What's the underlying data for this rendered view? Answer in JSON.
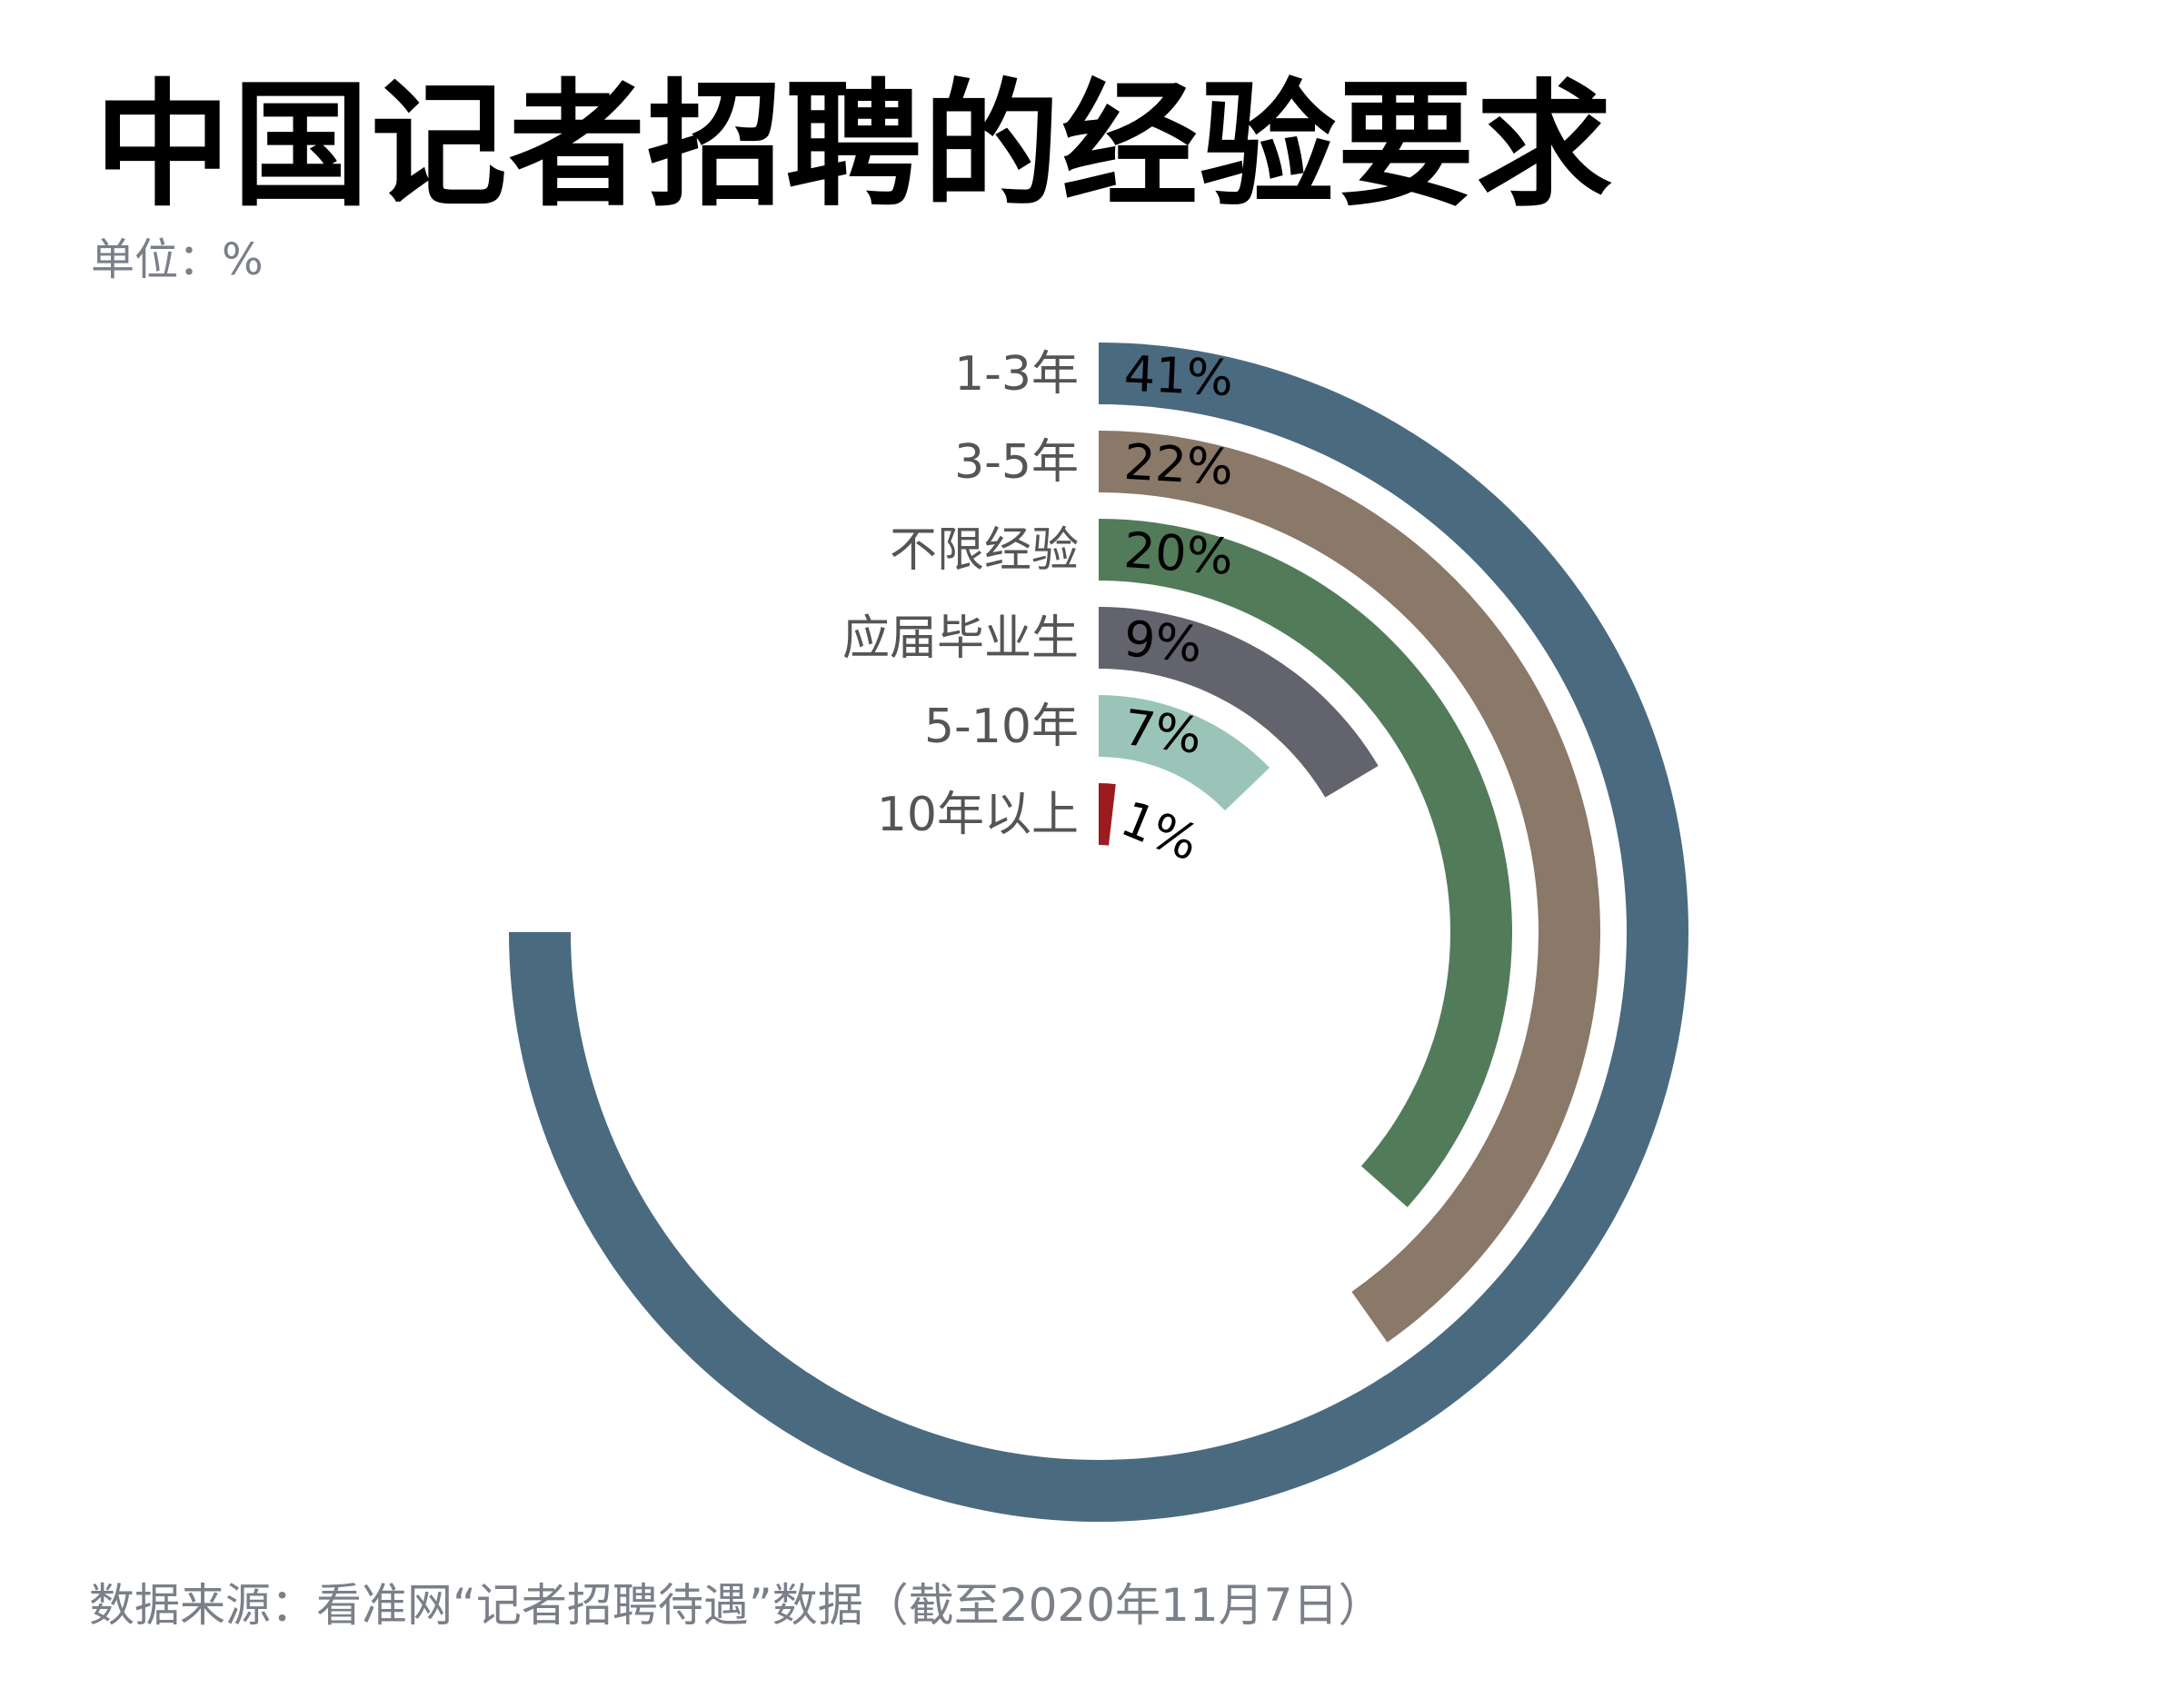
{
  "chart_data": {
    "type": "radial-bar",
    "title": "中国记者招聘的经验要求",
    "subtitle": "单位：%",
    "source": "数据来源：看准网“记者招聘待遇”数据（截至2020年11月7日）",
    "categories": [
      "1-3年",
      "3-5年",
      "不限经验",
      "应届毕业生",
      "5-10年",
      "10年以上"
    ],
    "values": [
      41,
      22,
      20,
      9,
      7,
      1
    ],
    "value_labels": [
      "41%",
      "22%",
      "20%",
      "9%",
      "7%",
      "1%"
    ],
    "colors": [
      "#4a6a80",
      "#8a7868",
      "#527b5a",
      "#63636d",
      "#9bc4b8",
      "#9b1c20"
    ],
    "max_value_sweep_degrees": 270
  }
}
